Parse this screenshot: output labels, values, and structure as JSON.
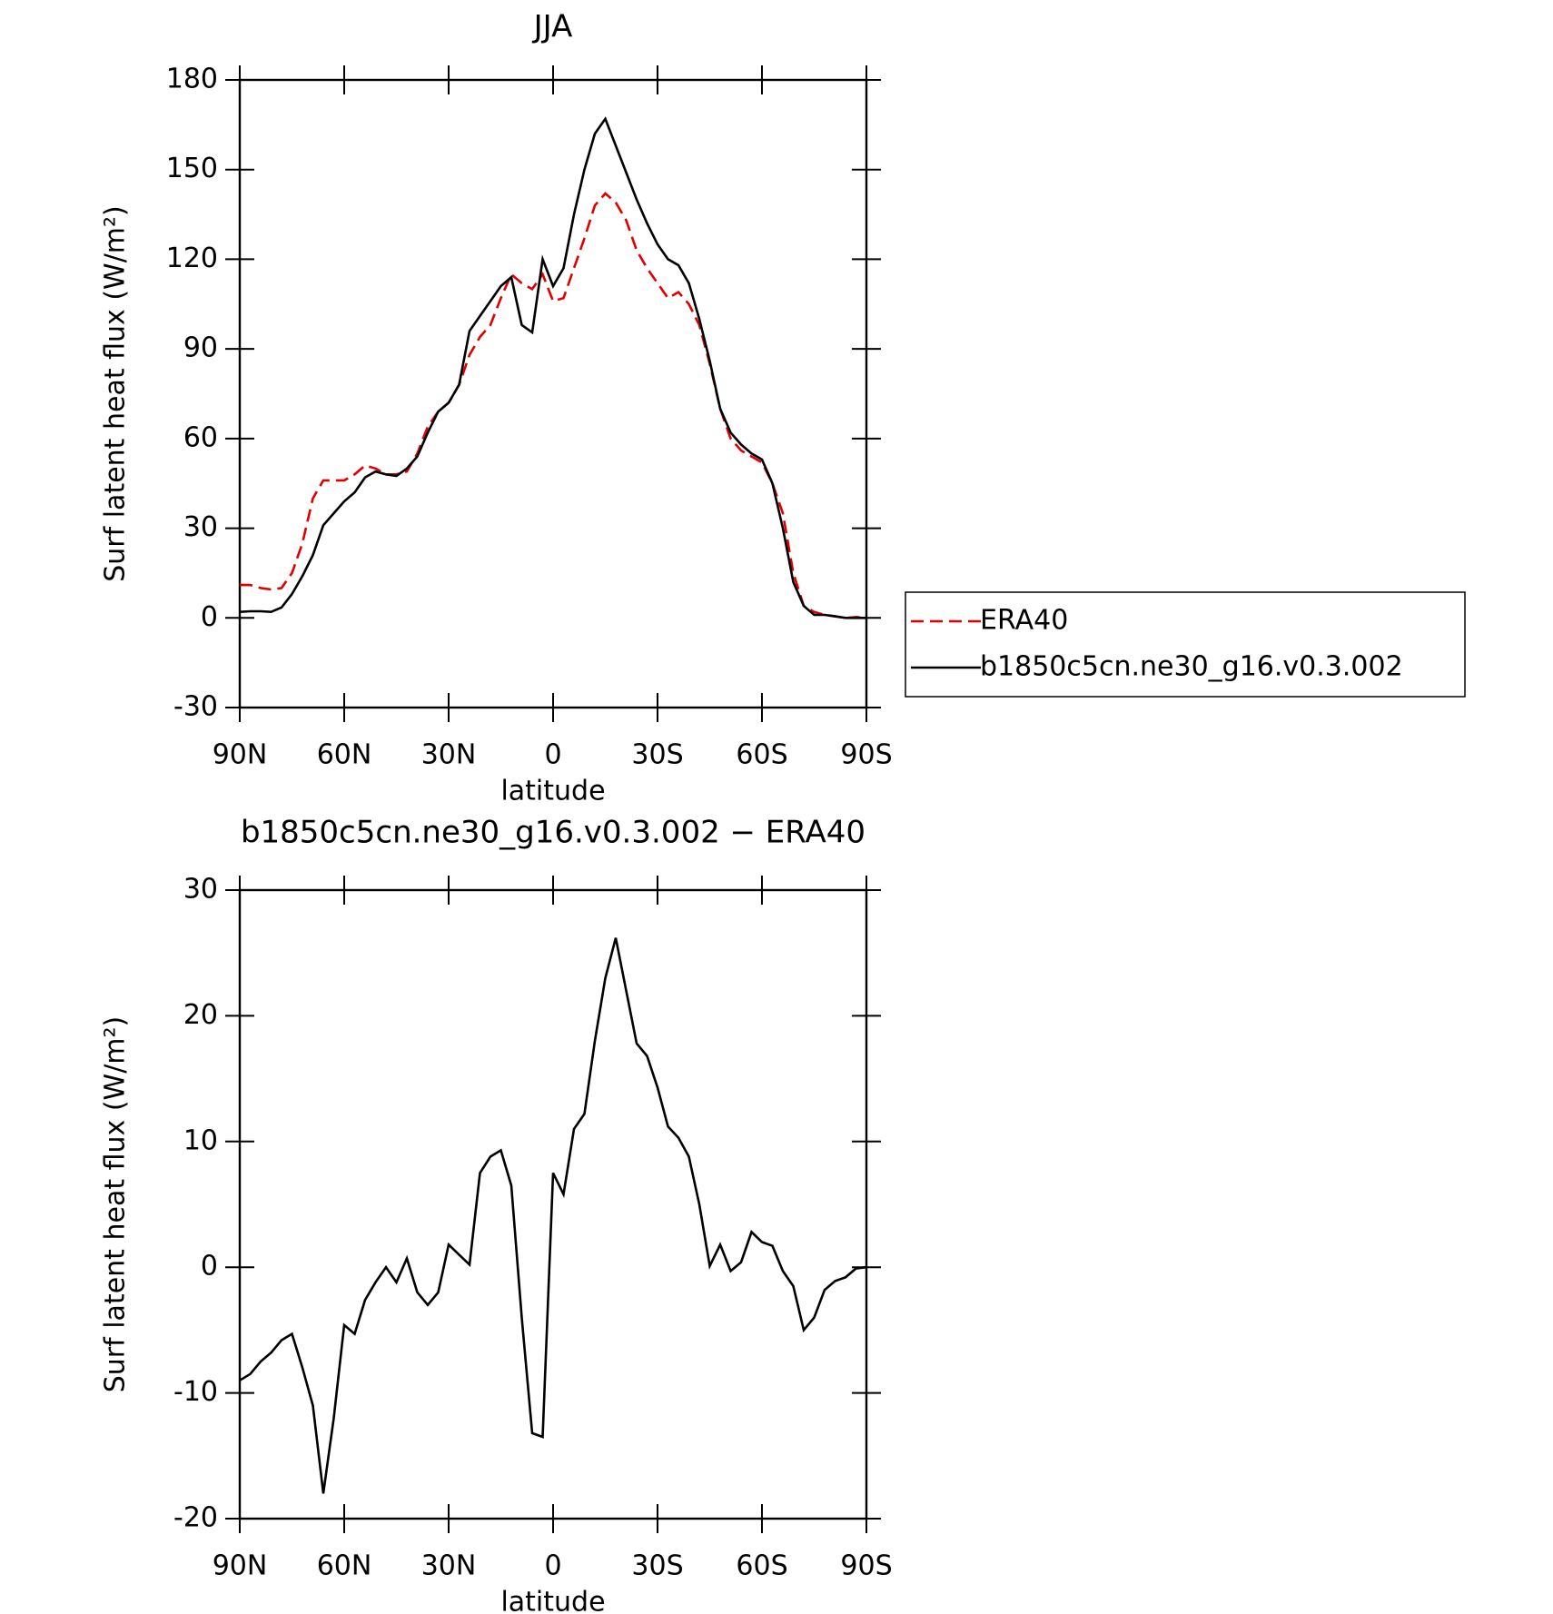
{
  "chart_data": [
    {
      "type": "line",
      "title": "JJA",
      "x_label": "latitude",
      "y_label": "Surf latent heat flux (W/m²)",
      "x": [
        90,
        87,
        84,
        81,
        78,
        75,
        72,
        69,
        66,
        63,
        60,
        57,
        54,
        51,
        48,
        45,
        42,
        39,
        36,
        33,
        30,
        27,
        24,
        21,
        18,
        15,
        12,
        9,
        6,
        3,
        0,
        -3,
        -6,
        -9,
        -12,
        -15,
        -18,
        -21,
        -24,
        -27,
        -30,
        -33,
        -36,
        -39,
        -42,
        -45,
        -48,
        -51,
        -54,
        -57,
        -60,
        -63,
        -66,
        -69,
        -72,
        -75,
        -78,
        -81,
        -84,
        -87,
        -90
      ],
      "series": [
        {
          "name": "ERA40",
          "color": "#e00000",
          "line_style": "dashed",
          "values": [
            11,
            11,
            10,
            9.5,
            10,
            15,
            25,
            40,
            46,
            46,
            46,
            48,
            51,
            50,
            48,
            48,
            49,
            55,
            64,
            69,
            72,
            78,
            88,
            94,
            98,
            107,
            115,
            112,
            110,
            115,
            106,
            107,
            117,
            127,
            138,
            142,
            139,
            133,
            123,
            117,
            112,
            107,
            109,
            105,
            98,
            85,
            70,
            60,
            56,
            54,
            52,
            45,
            35,
            15,
            4,
            2,
            1,
            0.5,
            0,
            0.3,
            0
          ]
        },
        {
          "name": "b1850c5cn.ne30_g16.v0.3.002",
          "color": "#000000",
          "line_style": "solid",
          "values": [
            2,
            2.2,
            2.2,
            2,
            3.5,
            8,
            14,
            21,
            31,
            35,
            39,
            42,
            47,
            49,
            48,
            47.5,
            50,
            54,
            62,
            69,
            72,
            78,
            96,
            101,
            106,
            111,
            114,
            98,
            95.5,
            120,
            111,
            117,
            135,
            150,
            162,
            167,
            158,
            149,
            140,
            132,
            125,
            120,
            118,
            112,
            100,
            86,
            70,
            62,
            58,
            55,
            53,
            45,
            30,
            12,
            4,
            1,
            1,
            0.5,
            0,
            0,
            0
          ]
        }
      ],
      "xlim": [
        90,
        -90
      ],
      "xticks": [
        {
          "value": 90,
          "label": "90N"
        },
        {
          "value": 60,
          "label": "60N"
        },
        {
          "value": 30,
          "label": "30N"
        },
        0,
        {
          "value": -30,
          "label": "30S"
        },
        {
          "value": -60,
          "label": "60S"
        },
        {
          "value": -90,
          "label": "90S"
        }
      ],
      "ylim": [
        -30,
        180
      ],
      "yticks": [
        -30,
        0,
        30,
        60,
        90,
        120,
        150,
        180
      ],
      "legend": "right"
    },
    {
      "type": "line",
      "title": "b1850c5cn.ne30_g16.v0.3.002 − ERA40",
      "x_label": "latitude",
      "y_label": "Surf latent heat flux (W/m²)",
      "x": [
        90,
        87,
        84,
        81,
        78,
        75,
        72,
        69,
        66,
        63,
        60,
        57,
        54,
        51,
        48,
        45,
        42,
        39,
        36,
        33,
        30,
        27,
        24,
        21,
        18,
        15,
        12,
        9,
        6,
        3,
        0,
        -3,
        -6,
        -9,
        -12,
        -15,
        -18,
        -21,
        -24,
        -27,
        -30,
        -33,
        -36,
        -39,
        -42,
        -45,
        -48,
        -51,
        -54,
        -57,
        -60,
        -63,
        -66,
        -69,
        -72,
        -75,
        -78,
        -81,
        -84,
        -87,
        -90
      ],
      "values": [
        -9,
        -8.5,
        -7.5,
        -6.8,
        -5.8,
        -5.3,
        -8,
        -11,
        -18,
        -12,
        -4.6,
        -5.3,
        -2.6,
        -1.2,
        0,
        -1.2,
        0.7,
        -2,
        -3,
        -2,
        1.8,
        1,
        0.2,
        7.5,
        8.8,
        9.3,
        6.5,
        -4,
        -13.2,
        -13.5,
        7.5,
        5.8,
        11,
        12.2,
        18,
        23,
        26.2,
        22,
        17.8,
        16.8,
        14.3,
        11.2,
        10.3,
        8.8,
        5,
        0.1,
        1.8,
        -0.3,
        0.4,
        2.8,
        2,
        1.7,
        -0.3,
        -1.5,
        -5,
        -4,
        -1.8,
        -1.1,
        -0.8,
        -0.1,
        0
      ],
      "color": "#000000",
      "xlim": [
        90,
        -90
      ],
      "xticks": [
        {
          "value": 90,
          "label": "90N"
        },
        {
          "value": 60,
          "label": "60N"
        },
        {
          "value": 30,
          "label": "30N"
        },
        0,
        {
          "value": -30,
          "label": "30S"
        },
        {
          "value": -60,
          "label": "60S"
        },
        {
          "value": -90,
          "label": "90S"
        }
      ],
      "ylim": [
        -20,
        30
      ],
      "yticks": [
        -20,
        -10,
        0,
        10,
        20,
        30
      ]
    }
  ]
}
